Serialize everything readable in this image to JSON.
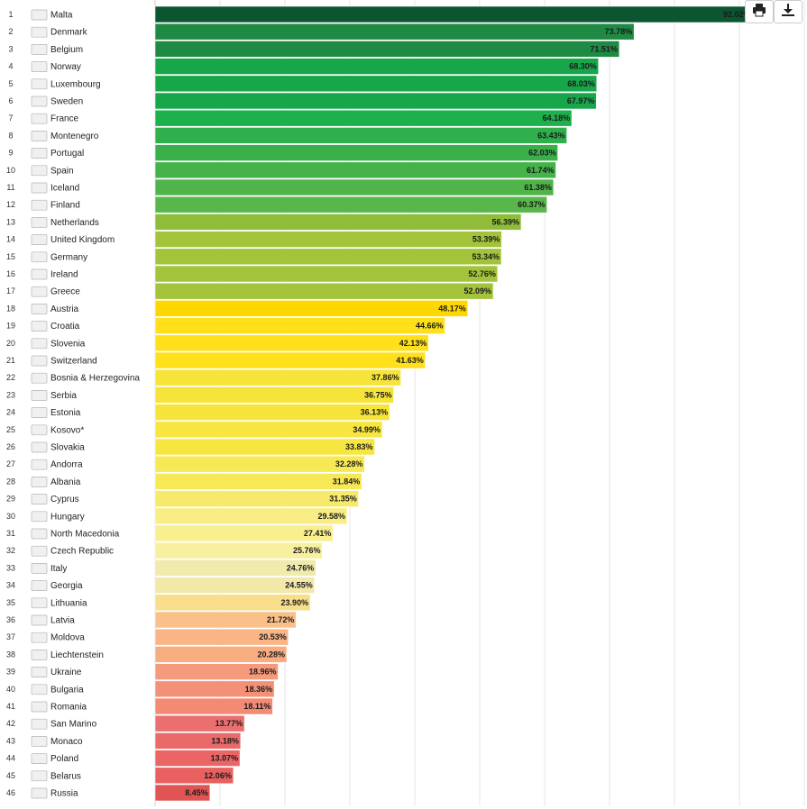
{
  "chart_data": {
    "type": "bar",
    "orientation": "horizontal",
    "ranks": [
      1,
      2,
      3,
      4,
      5,
      6,
      7,
      8,
      9,
      10,
      11,
      12,
      13,
      14,
      15,
      16,
      17,
      18,
      19,
      20,
      21,
      22,
      23,
      24,
      25,
      26,
      27,
      28,
      29,
      30,
      31,
      32,
      33,
      34,
      35,
      36,
      37,
      38,
      39,
      40,
      41,
      42,
      43,
      44,
      45,
      46
    ],
    "categories": [
      "Malta",
      "Denmark",
      "Belgium",
      "Norway",
      "Luxembourg",
      "Sweden",
      "France",
      "Montenegro",
      "Portugal",
      "Spain",
      "Iceland",
      "Finland",
      "Netherlands",
      "United Kingdom",
      "Germany",
      "Ireland",
      "Greece",
      "Austria",
      "Croatia",
      "Slovenia",
      "Switzerland",
      "Bosnia & Herzegovina",
      "Serbia",
      "Estonia",
      "Kosovo*",
      "Slovakia",
      "Andorra",
      "Albania",
      "Cyprus",
      "Hungary",
      "North Macedonia",
      "Czech Republic",
      "Italy",
      "Georgia",
      "Lithuania",
      "Latvia",
      "Moldova",
      "Liechtenstein",
      "Ukraine",
      "Bulgaria",
      "Romania",
      "San Marino",
      "Monaco",
      "Poland",
      "Belarus",
      "Russia"
    ],
    "values": [
      92.02,
      73.78,
      71.51,
      68.3,
      68.03,
      67.97,
      64.18,
      63.43,
      62.03,
      61.74,
      61.38,
      60.37,
      56.39,
      53.39,
      53.34,
      52.76,
      52.09,
      48.17,
      44.66,
      42.13,
      41.63,
      37.86,
      36.75,
      36.13,
      34.99,
      33.83,
      32.28,
      31.84,
      31.35,
      29.58,
      27.41,
      25.76,
      24.76,
      24.55,
      23.9,
      21.72,
      20.53,
      20.28,
      18.96,
      18.36,
      18.11,
      13.77,
      13.18,
      13.07,
      12.06,
      8.45
    ],
    "labels": [
      "92.02%",
      "73.78%",
      "71.51%",
      "68.30%",
      "68.03%",
      "67.97%",
      "64.18%",
      "63.43%",
      "62.03%",
      "61.74%",
      "61.38%",
      "60.37%",
      "56.39%",
      "53.39%",
      "53.34%",
      "52.76%",
      "52.09%",
      "48.17%",
      "44.66%",
      "42.13%",
      "41.63%",
      "37.86%",
      "36.75%",
      "36.13%",
      "34.99%",
      "33.83%",
      "32.28%",
      "31.84%",
      "31.35%",
      "29.58%",
      "27.41%",
      "25.76%",
      "24.76%",
      "24.55%",
      "23.90%",
      "21.72%",
      "20.53%",
      "20.28%",
      "18.96%",
      "18.36%",
      "18.11%",
      "13.77%",
      "13.18%",
      "13.07%",
      "12.06%",
      "8.45%"
    ],
    "colors": [
      "#0b5531",
      "#1e8a44",
      "#1e8a44",
      "#18a64a",
      "#18a64a",
      "#18a64a",
      "#1db04b",
      "#2fb04c",
      "#3ab04b",
      "#45b24a",
      "#4fb44a",
      "#58b64a",
      "#8fbd3a",
      "#a3c43a",
      "#a3c43a",
      "#a3c43a",
      "#a3c43a",
      "#ffd700",
      "#ffe01a",
      "#ffe01a",
      "#ffe01a",
      "#f7e43a",
      "#f7e43a",
      "#f7e43a",
      "#f7e63f",
      "#f7e63f",
      "#f7e955",
      "#f7e955",
      "#f7ea6a",
      "#f8ee85",
      "#f8ef8e",
      "#f7f0a0",
      "#f1eaad",
      "#f2e8a8",
      "#f8de8a",
      "#f9c08a",
      "#f9b586",
      "#f7ad80",
      "#f59a7d",
      "#f39178",
      "#f28a74",
      "#ec6f6f",
      "#ea6a6a",
      "#ea6565",
      "#e86060",
      "#e05454"
    ],
    "xlim": [
      0,
      100
    ],
    "grid": true,
    "icons": [
      "flag-icon",
      "print-icon",
      "download-icon"
    ]
  },
  "toolbar": {
    "print_icon": "print-icon",
    "download_icon": "download-icon"
  }
}
